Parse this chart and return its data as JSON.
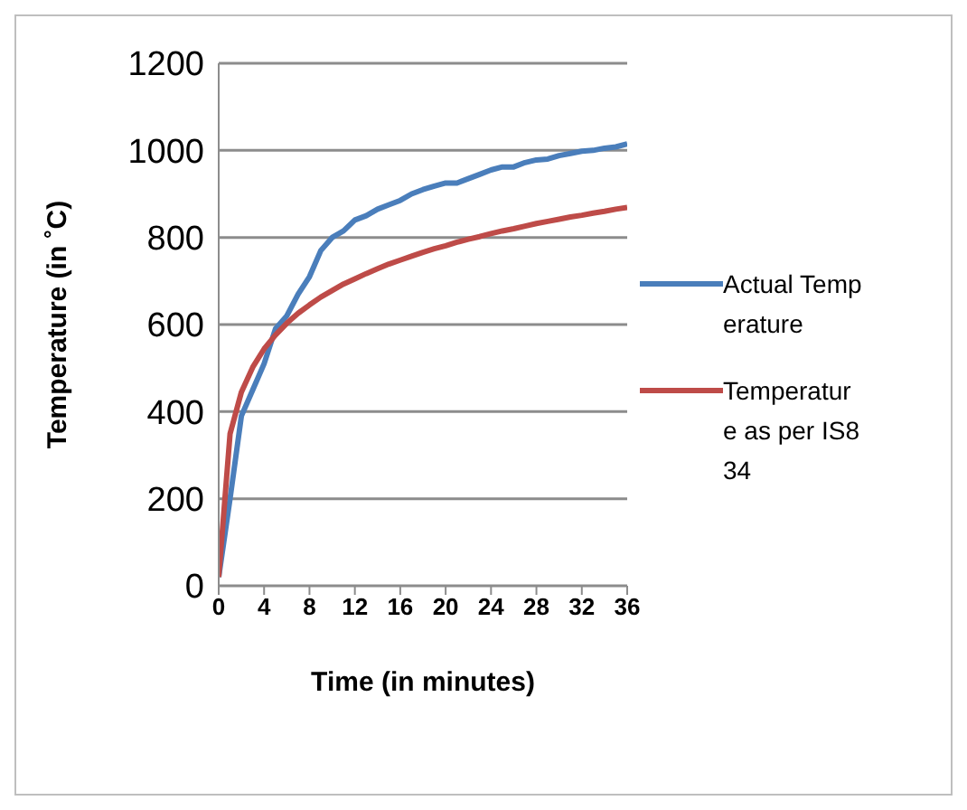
{
  "chart_data": {
    "type": "line",
    "xlabel": "Time (in minutes)",
    "ylabel": "Temperature  (in  ˚C)",
    "x": [
      0,
      1,
      2,
      3,
      4,
      5,
      6,
      7,
      8,
      9,
      10,
      11,
      12,
      13,
      14,
      15,
      16,
      17,
      18,
      19,
      20,
      21,
      22,
      23,
      24,
      25,
      26,
      27,
      28,
      29,
      30,
      31,
      32,
      33,
      34,
      35,
      36
    ],
    "series": [
      {
        "name": "Actual Temperature",
        "color": "#4a7ebb",
        "values": [
          20,
          200,
          390,
          450,
          510,
          590,
          620,
          670,
          710,
          770,
          800,
          815,
          840,
          850,
          865,
          875,
          885,
          900,
          910,
          918,
          925,
          925,
          935,
          945,
          955,
          962,
          962,
          972,
          978,
          980,
          988,
          993,
          998,
          1000,
          1005,
          1008,
          1015
        ]
      },
      {
        "name": "Temperature as per IS834",
        "color": "#be4b48",
        "values": [
          20,
          349,
          445,
          502,
          544,
          576,
          603,
          626,
          645,
          663,
          678,
          693,
          705,
          717,
          728,
          739,
          748,
          757,
          766,
          774,
          781,
          789,
          796,
          802,
          809,
          815,
          820,
          826,
          832,
          837,
          842,
          847,
          851,
          856,
          860,
          865,
          869
        ]
      }
    ],
    "xlim": [
      0,
      36
    ],
    "xticks": [
      0,
      4,
      8,
      12,
      16,
      20,
      24,
      28,
      32,
      36
    ],
    "ylim": [
      0,
      1200
    ],
    "yticks": [
      0,
      200,
      400,
      600,
      800,
      1000,
      1200
    ],
    "grid": "y",
    "legend": "right",
    "marker": "none",
    "line_style": "solid"
  }
}
